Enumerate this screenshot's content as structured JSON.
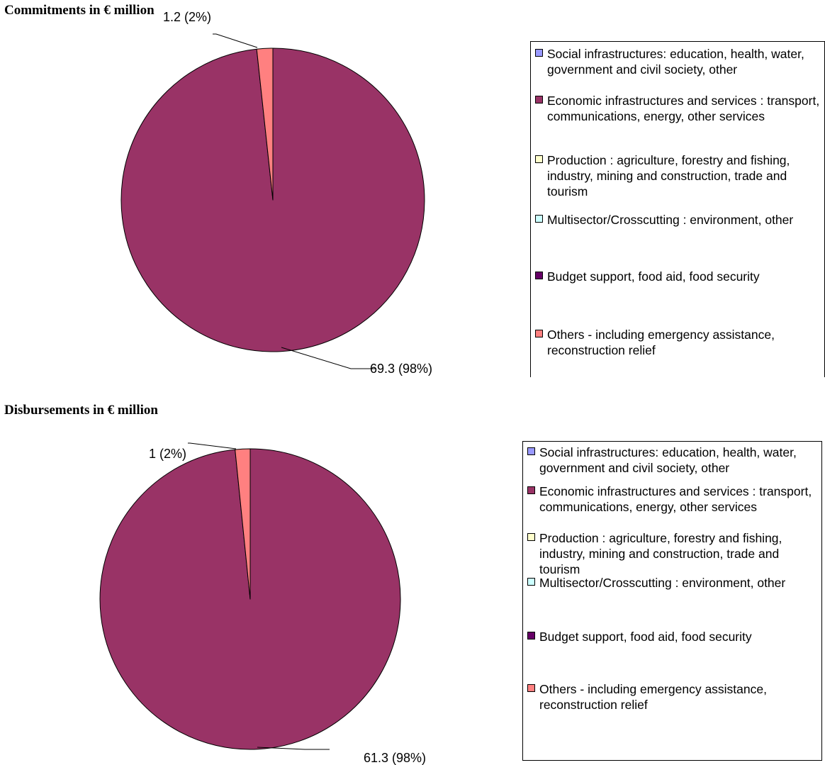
{
  "charts": [
    {
      "title": "Commitments in € million",
      "chart_data": {
        "type": "pie",
        "title": "Commitments in € million",
        "slices": [
          {
            "label": "Social infrastructures: education, health, water, government and civil society, other",
            "value": 0,
            "color": "#9999ff"
          },
          {
            "label": "Economic infrastructures and services : transport, communications, energy, other services",
            "value": 69.3,
            "percent": 98,
            "data_label": "69.3 (98%)",
            "color": "#993366"
          },
          {
            "label": "Production : agriculture, forestry and fishing, industry, mining and construction, trade and tourism",
            "value": 0,
            "color": "#ffffcc"
          },
          {
            "label": "Multisector/Crosscutting : environment, other",
            "value": 0,
            "color": "#ccffff"
          },
          {
            "label": "Budget support, food aid, food security",
            "value": 0,
            "color": "#660066"
          },
          {
            "label": "Others - including emergency assistance, reconstruction relief",
            "value": 1.2,
            "percent": 2,
            "data_label": "1.2 (2%)",
            "color": "#ff8080"
          }
        ],
        "legend_position": "right"
      }
    },
    {
      "title": "Disbursements in € million",
      "chart_data": {
        "type": "pie",
        "title": "Disbursements in € million",
        "slices": [
          {
            "label": "Social infrastructures: education, health, water, government and civil society, other",
            "value": 0,
            "color": "#9999ff"
          },
          {
            "label": "Economic infrastructures and services : transport, communications, energy, other services",
            "value": 61.3,
            "percent": 98,
            "data_label": "61.3 (98%)",
            "color": "#993366"
          },
          {
            "label": "Production : agriculture, forestry and fishing, industry, mining and construction, trade and tourism",
            "value": 0,
            "color": "#ffffcc"
          },
          {
            "label": "Multisector/Crosscutting : environment, other",
            "value": 0,
            "color": "#ccffff"
          },
          {
            "label": "Budget support, food aid, food security",
            "value": 0,
            "color": "#660066"
          },
          {
            "label": "Others - including emergency assistance, reconstruction relief",
            "value": 1,
            "percent": 2,
            "data_label": "1 (2%)",
            "color": "#ff8080"
          }
        ],
        "legend_position": "right"
      }
    }
  ]
}
